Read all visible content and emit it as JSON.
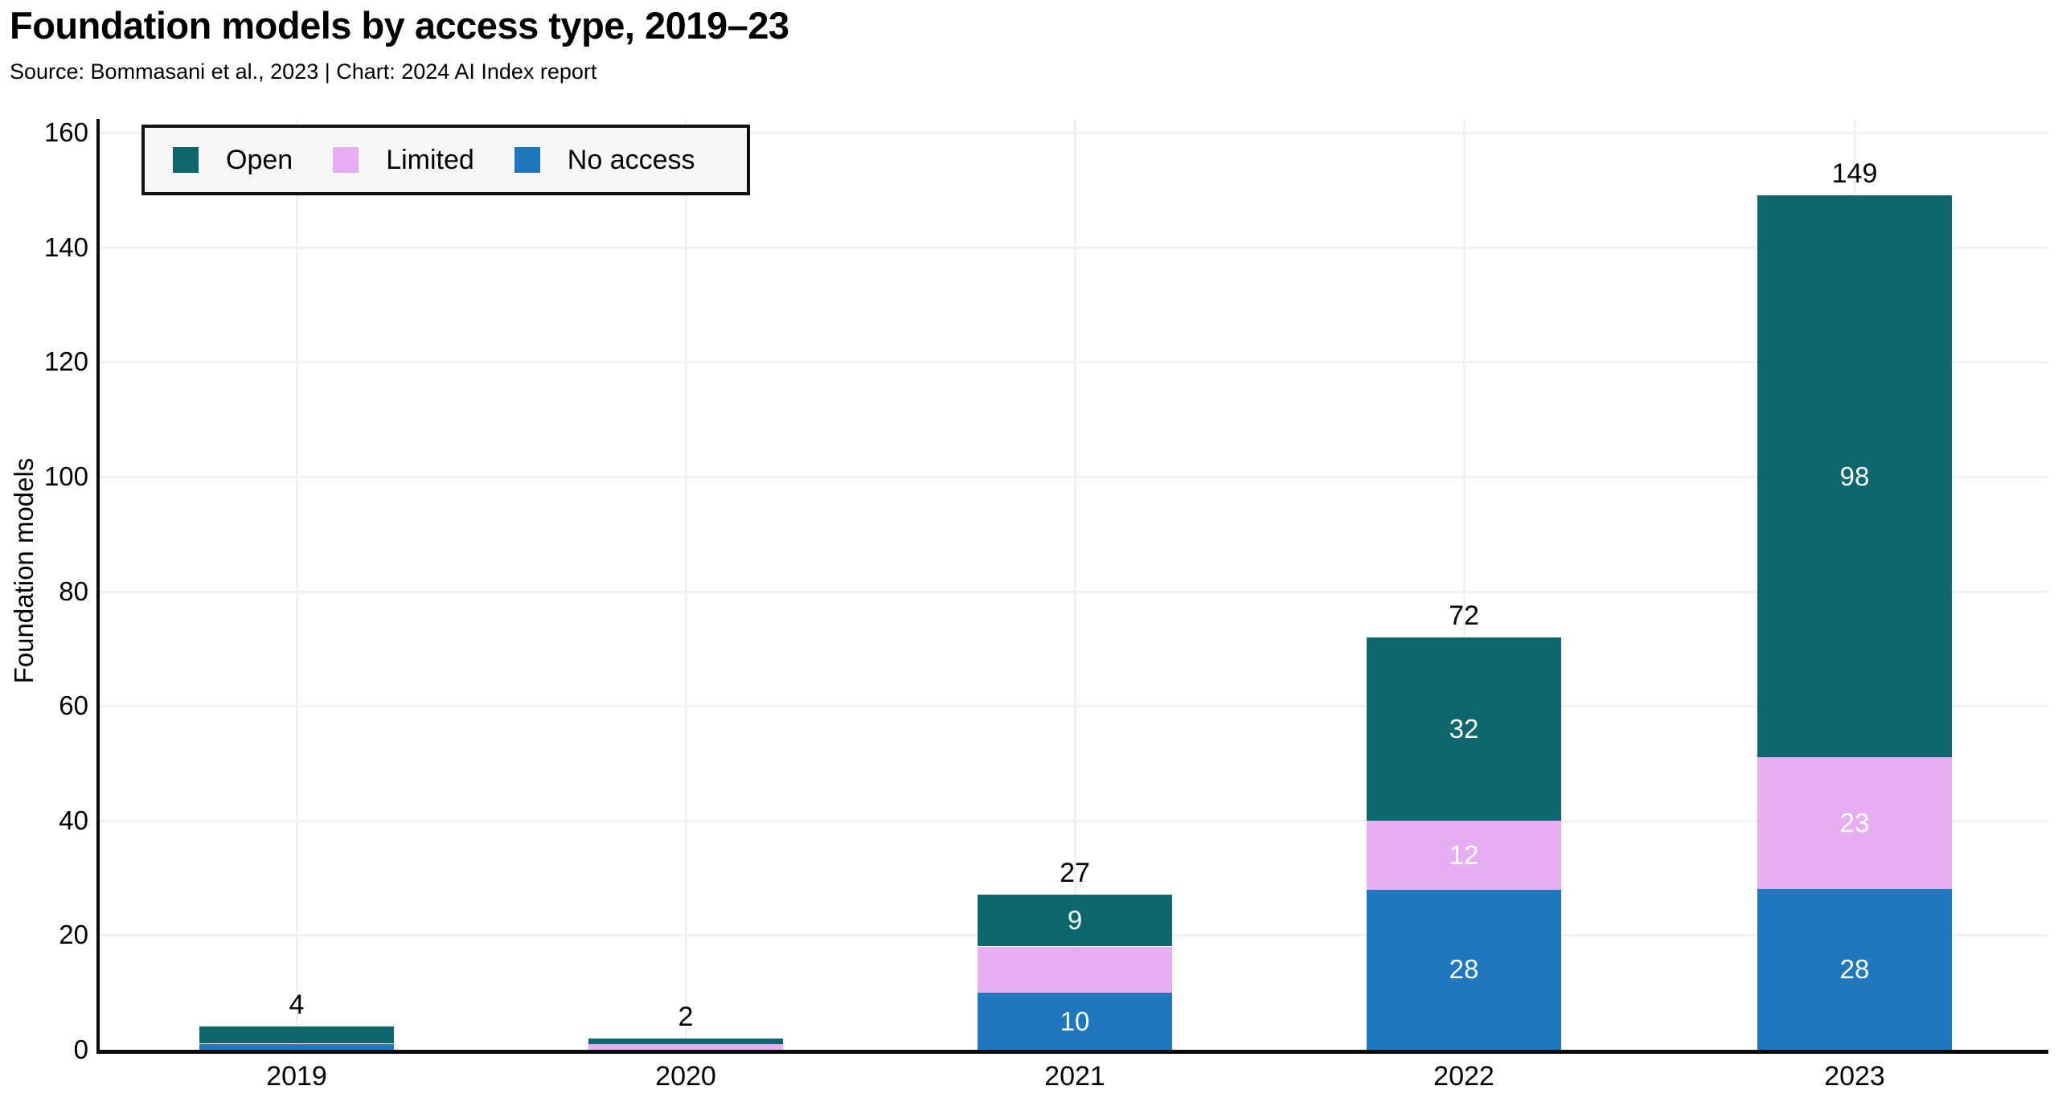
{
  "header": {
    "title": "Foundation models by access type, 2019–23",
    "subtitle": "Source: Bommasani et al., 2023 | Chart: 2024 AI Index report"
  },
  "legend": {
    "items": [
      {
        "label": "Open",
        "color": "#0d676d"
      },
      {
        "label": "Limited",
        "color": "#e7aef3"
      },
      {
        "label": "No access",
        "color": "#1f77bd"
      }
    ]
  },
  "chart_data": {
    "type": "bar",
    "stacked": true,
    "title": "Foundation models by access type, 2019–23",
    "subtitle": "Source: Bommasani et al., 2023 | Chart: 2024 AI Index report",
    "categories": [
      "2019",
      "2020",
      "2021",
      "2022",
      "2023"
    ],
    "series": [
      {
        "name": "Open",
        "color": "#0d676d",
        "values": [
          3,
          1,
          9,
          32,
          98
        ],
        "segment_labels": [
          "",
          "",
          "9",
          "32",
          "98"
        ]
      },
      {
        "name": "Limited",
        "color": "#e7aef3",
        "values": [
          0,
          1,
          8,
          12,
          23
        ],
        "segment_labels": [
          "",
          "",
          "",
          "12",
          "23"
        ]
      },
      {
        "name": "No access",
        "color": "#1f77bd",
        "values": [
          1,
          0,
          10,
          28,
          28
        ],
        "segment_labels": [
          "",
          "",
          "10",
          "28",
          "28"
        ]
      }
    ],
    "stack_order_bottom_to_top": [
      "No access",
      "Limited",
      "Open"
    ],
    "totals": [
      4,
      2,
      27,
      72,
      149
    ],
    "xlabel": "",
    "ylabel": "Foundation models",
    "ylim": [
      0,
      160
    ],
    "yticks": [
      0,
      20,
      40,
      60,
      80,
      100,
      120,
      140,
      160
    ],
    "grid": true,
    "legend_position": "top-left",
    "axis_color": "#0a0a0a",
    "grid_color": "#f2f2f2",
    "segment_label_color": "#ffffff"
  }
}
